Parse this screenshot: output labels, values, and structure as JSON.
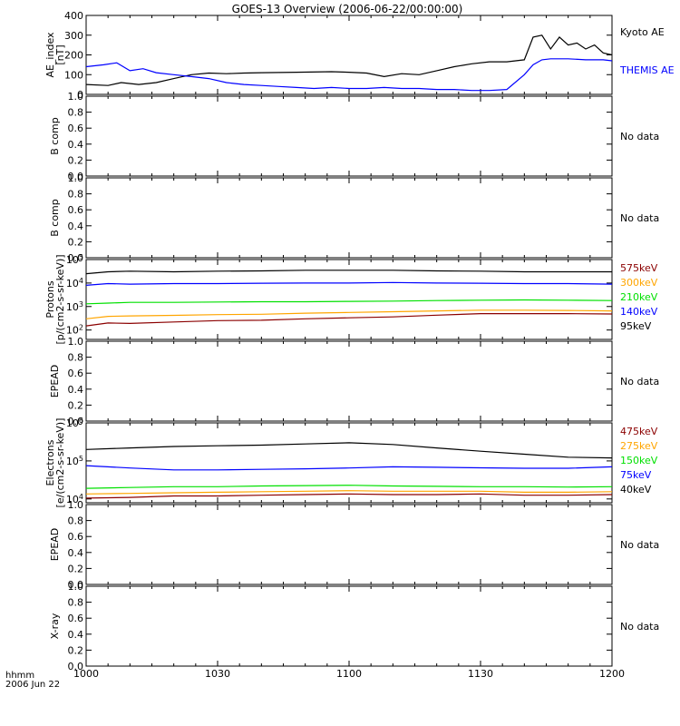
{
  "title": "GOES-13 Overview (2006-06-22/00:00:00)",
  "x_axis": {
    "ticks": [
      "1000",
      "1030",
      "1100",
      "1130",
      "1200"
    ],
    "tick_minutes": [
      0,
      30,
      60,
      90,
      120
    ],
    "caption_line1": "hhmm",
    "caption_line2": "2006 Jun 22"
  },
  "colors": {
    "black": "#000000",
    "blue": "#0000ff",
    "green": "#00e000",
    "orange": "#ffa500",
    "darkred": "#8b0000",
    "axis": "#000000"
  },
  "chart_data": [
    {
      "type": "line",
      "ylabel": [
        "AE_index",
        "[nT]"
      ],
      "ylim": [
        0,
        400
      ],
      "yticks": [
        "0",
        "100",
        "200",
        "300",
        "400"
      ],
      "x_unit": "minutes after 10:00 UT",
      "series": [
        {
          "name": "Kyoto AE",
          "color": "#000000",
          "x": [
            0,
            5,
            8,
            12,
            16,
            20,
            24,
            28,
            32,
            36,
            40,
            48,
            56,
            60,
            64,
            68,
            72,
            76,
            80,
            84,
            88,
            92,
            96,
            100,
            102,
            104,
            106,
            108,
            110,
            112,
            114,
            116,
            118,
            120
          ],
          "y": [
            50,
            45,
            60,
            50,
            60,
            80,
            100,
            108,
            105,
            108,
            110,
            112,
            115,
            112,
            108,
            90,
            105,
            100,
            120,
            140,
            155,
            165,
            165,
            175,
            290,
            300,
            230,
            290,
            250,
            260,
            230,
            250,
            210,
            200
          ]
        },
        {
          "name": "THEMIS AE",
          "color": "#0000ff",
          "x": [
            0,
            4,
            7,
            10,
            13,
            16,
            20,
            24,
            28,
            32,
            36,
            40,
            44,
            48,
            52,
            56,
            60,
            64,
            68,
            72,
            76,
            80,
            84,
            88,
            92,
            96,
            100,
            102,
            104,
            106,
            110,
            114,
            118,
            120
          ],
          "y": [
            140,
            150,
            160,
            120,
            130,
            110,
            100,
            90,
            80,
            60,
            50,
            45,
            40,
            35,
            30,
            35,
            30,
            30,
            35,
            30,
            30,
            25,
            25,
            20,
            20,
            25,
            100,
            150,
            175,
            180,
            180,
            175,
            175,
            170
          ]
        }
      ]
    },
    {
      "type": "line",
      "ylabel": [
        "B comp"
      ],
      "ylim": [
        0,
        1
      ],
      "yticks": [
        "0.0",
        "0.2",
        "0.4",
        "0.6",
        "0.8",
        "1.0"
      ],
      "annotation": "No data",
      "series": []
    },
    {
      "type": "line",
      "ylabel": [
        "B comp"
      ],
      "ylim": [
        0,
        1
      ],
      "yticks": [
        "0.0",
        "0.2",
        "0.4",
        "0.6",
        "0.8",
        "1.0"
      ],
      "annotation": "No data",
      "series": []
    },
    {
      "type": "line",
      "log_scale": true,
      "ylabel": [
        "Protons",
        "[p/(cm2-s-sr-keV)]"
      ],
      "ylim_log10": [
        1.6,
        5
      ],
      "yticks": [
        "10^2",
        "10^3",
        "10^4",
        "10^5"
      ],
      "series": [
        {
          "name": "575keV",
          "color": "#8b0000",
          "x": [
            0,
            5,
            10,
            20,
            30,
            40,
            50,
            60,
            70,
            80,
            90,
            100,
            110,
            120
          ],
          "y": [
            150,
            200,
            190,
            220,
            250,
            260,
            300,
            330,
            360,
            430,
            500,
            500,
            500,
            480
          ]
        },
        {
          "name": "300keV",
          "color": "#ffa500",
          "x": [
            0,
            5,
            10,
            20,
            30,
            40,
            50,
            60,
            70,
            80,
            90,
            100,
            110,
            120
          ],
          "y": [
            300,
            380,
            400,
            420,
            450,
            470,
            520,
            560,
            600,
            650,
            700,
            700,
            680,
            650
          ]
        },
        {
          "name": "210keV",
          "color": "#00e000",
          "x": [
            0,
            5,
            10,
            20,
            30,
            40,
            50,
            60,
            70,
            80,
            90,
            100,
            110,
            120
          ],
          "y": [
            1300,
            1400,
            1500,
            1500,
            1550,
            1600,
            1600,
            1650,
            1700,
            1800,
            1850,
            1900,
            1850,
            1800
          ]
        },
        {
          "name": "140keV",
          "color": "#0000ff",
          "x": [
            0,
            5,
            10,
            20,
            30,
            40,
            50,
            60,
            70,
            80,
            90,
            100,
            110,
            120
          ],
          "y": [
            8000,
            9500,
            9000,
            9500,
            9500,
            9800,
            10000,
            10000,
            10500,
            10000,
            9800,
            9500,
            9500,
            9000
          ]
        },
        {
          "name": "95keV",
          "color": "#000000",
          "x": [
            0,
            5,
            10,
            20,
            30,
            40,
            50,
            60,
            70,
            80,
            90,
            100,
            110,
            120
          ],
          "y": [
            25000,
            30000,
            32000,
            30000,
            32000,
            33000,
            35000,
            35000,
            35000,
            33000,
            32000,
            30000,
            30000,
            30000
          ]
        }
      ]
    },
    {
      "type": "line",
      "ylabel": [
        "EPEAD"
      ],
      "ylim": [
        0,
        1
      ],
      "yticks": [
        "0.0",
        "0.2",
        "0.4",
        "0.6",
        "0.8",
        "1.0"
      ],
      "annotation": "No data",
      "series": []
    },
    {
      "type": "line",
      "log_scale": true,
      "ylabel": [
        "Electrons",
        "[e/(cm2-s-sr-keV)]"
      ],
      "ylim_log10": [
        3.9,
        6
      ],
      "yticks": [
        "10^4",
        "10^5",
        "10^6"
      ],
      "series": [
        {
          "name": "475keV",
          "color": "#8b0000",
          "x": [
            0,
            10,
            20,
            30,
            40,
            50,
            60,
            70,
            80,
            90,
            100,
            110,
            120
          ],
          "y": [
            10500,
            11000,
            12000,
            12000,
            12500,
            13000,
            13500,
            13000,
            13000,
            13500,
            12500,
            12500,
            13000
          ]
        },
        {
          "name": "275keV",
          "color": "#ffa500",
          "x": [
            0,
            10,
            20,
            30,
            40,
            50,
            60,
            70,
            80,
            90,
            100,
            110,
            120
          ],
          "y": [
            13500,
            14000,
            14500,
            15000,
            15500,
            16000,
            16500,
            16000,
            16000,
            16000,
            15000,
            15000,
            15500
          ]
        },
        {
          "name": "150keV",
          "color": "#00e000",
          "x": [
            0,
            10,
            20,
            30,
            40,
            50,
            60,
            70,
            80,
            90,
            100,
            110,
            120
          ],
          "y": [
            19000,
            20000,
            21000,
            21000,
            22000,
            22500,
            23000,
            22000,
            21500,
            21000,
            21000,
            20500,
            21000
          ]
        },
        {
          "name": "75keV",
          "color": "#0000ff",
          "x": [
            0,
            10,
            20,
            30,
            40,
            50,
            60,
            70,
            80,
            90,
            100,
            110,
            120
          ],
          "y": [
            75000,
            65000,
            58000,
            58000,
            60000,
            62000,
            65000,
            70000,
            68000,
            66000,
            64000,
            64000,
            70000
          ]
        },
        {
          "name": "40keV",
          "color": "#000000",
          "x": [
            0,
            10,
            20,
            30,
            40,
            50,
            60,
            70,
            80,
            90,
            100,
            110,
            120
          ],
          "y": [
            200000,
            220000,
            240000,
            250000,
            260000,
            280000,
            300000,
            270000,
            220000,
            180000,
            150000,
            125000,
            120000
          ]
        }
      ]
    },
    {
      "type": "line",
      "ylabel": [
        "EPEAD"
      ],
      "ylim": [
        0,
        1
      ],
      "yticks": [
        "0.0",
        "0.2",
        "0.4",
        "0.6",
        "0.8",
        "1.0"
      ],
      "annotation": "No data",
      "series": []
    },
    {
      "type": "line",
      "ylabel": [
        "X-ray"
      ],
      "ylim": [
        0,
        1
      ],
      "yticks": [
        "0.0",
        "0.2",
        "0.4",
        "0.6",
        "0.8",
        "1.0"
      ],
      "annotation": "No data",
      "series": []
    }
  ]
}
